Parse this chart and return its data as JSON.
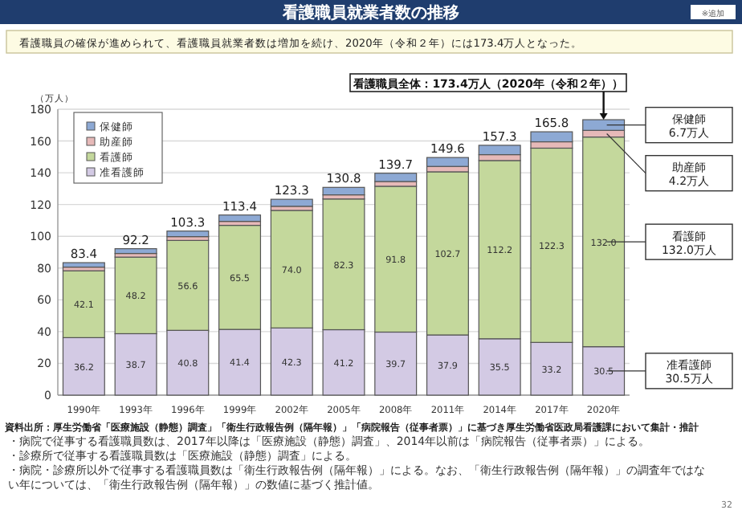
{
  "chart_data": {
    "type": "bar",
    "stacked": true,
    "title": "看護職員就業者数の推移",
    "subtitle": "看護職員の確保が進められて、看護職員就業者数は増加を続け、2020年（令和２年）には173.4万人となった。",
    "ylabel": "（万人）",
    "categories": [
      "1990年",
      "1993年",
      "1996年",
      "1999年",
      "2002年",
      "2005年",
      "2008年",
      "2011年",
      "2014年",
      "2017年",
      "2020年"
    ],
    "series": [
      {
        "name": "准看護師",
        "color": "#d3cae4",
        "values": [
          36.2,
          38.7,
          40.8,
          41.4,
          42.3,
          41.2,
          39.7,
          37.9,
          35.5,
          33.2,
          30.5
        ],
        "value_labels": [
          "36.2",
          "38.7",
          "40.8",
          "41.4",
          "42.3",
          "41.2",
          "39.7",
          "37.9",
          "35.5",
          "33.2",
          "30.5"
        ]
      },
      {
        "name": "看護師",
        "color": "#c4d89c",
        "values": [
          42.1,
          48.2,
          56.6,
          65.5,
          74.0,
          82.3,
          91.8,
          102.7,
          112.2,
          122.3,
          132.0
        ],
        "value_labels": [
          "42.1",
          "48.2",
          "56.6",
          "65.5",
          "74.0",
          "82.3",
          "91.8",
          "102.7",
          "112.2",
          "122.3",
          "132.0"
        ]
      },
      {
        "name": "助産師",
        "color": "#e6b9b8",
        "values": [
          2.3,
          2.3,
          2.4,
          2.5,
          2.6,
          2.6,
          3.0,
          3.4,
          3.7,
          4.0,
          4.2
        ]
      },
      {
        "name": "保健師",
        "color": "#8da9d4",
        "values": [
          2.8,
          3.0,
          3.5,
          4.0,
          4.4,
          4.7,
          5.2,
          5.6,
          5.9,
          6.3,
          6.7
        ]
      }
    ],
    "totals": [
      "83.4",
      "92.2",
      "103.3",
      "113.4",
      "123.3",
      "130.8",
      "139.7",
      "149.6",
      "157.3",
      "165.8",
      null
    ],
    "ylim": [
      0,
      180
    ],
    "yticks": [
      0,
      20,
      40,
      60,
      80,
      100,
      120,
      140,
      160,
      180
    ],
    "grid": "y",
    "legend": "top left",
    "annotations": [
      "※追加",
      {
        "text": "看護職員全体：173.4万人（2020年（令和２年））",
        "x": "2020年",
        "y": 173.4
      },
      "保健師\n6.7万人",
      "助産師\n4.2万人",
      "看護師\n132.0万人",
      "准看護師\n30.5万人",
      "資料出所：厚生労働省「医療施設（静態）調査」「衛生行政報告例（隔年報）」「病院報告（従事者票）」に基づき厚生労働省医政局看護課において集計・推計",
      "・病院で従事する看護職員数は、2017年以降は「医療施設（静態）調査」、2014年以前は「病院報告（従事者票）」による。",
      "・診療所で従事する看護職員数は「医療施設（静態）調査」による。",
      "・病院・診療所以外で従事する看護職員数は「衛生行政報告例（隔年報）」による。なお、「衛生行政報告例（隔年報）」の調査年ではない年については、「衛生行政報告例（隔年報）」の数値に基づく推計値。",
      "32"
    ]
  }
}
